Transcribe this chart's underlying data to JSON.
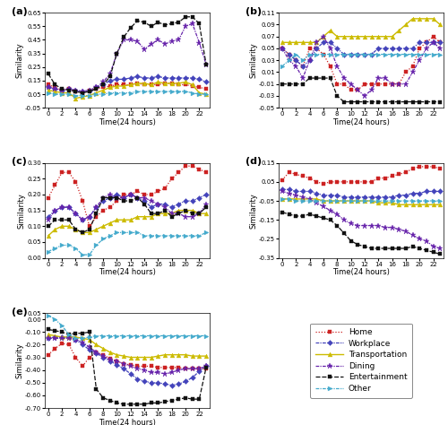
{
  "x": [
    0,
    1,
    2,
    3,
    4,
    5,
    6,
    7,
    8,
    9,
    10,
    11,
    12,
    13,
    14,
    15,
    16,
    17,
    18,
    19,
    20,
    21,
    22,
    23
  ],
  "subplot_titles": [
    "(a)",
    "(b)",
    "(c)",
    "(d)",
    "(e)"
  ],
  "xlabel": "Time(24 hours)",
  "ylabel": "Similarity",
  "legend_labels": [
    "Home",
    "Workplace",
    "Transportation",
    "Dining",
    "Entertainment",
    "Other"
  ],
  "colors": [
    "#cc2222",
    "#4444bb",
    "#ccbb00",
    "#6622aa",
    "#111111",
    "#44aacc"
  ],
  "markers": [
    "s",
    "D",
    "^",
    "*",
    "s",
    ">"
  ],
  "mksizes": [
    3,
    3,
    3.5,
    5,
    3,
    3.5
  ],
  "linewidths": [
    0.9,
    0.9,
    1.0,
    0.9,
    0.9,
    0.9
  ],
  "a_home": [
    0.12,
    0.1,
    0.08,
    0.09,
    0.07,
    0.06,
    0.08,
    0.09,
    0.1,
    0.11,
    0.12,
    0.12,
    0.12,
    0.13,
    0.12,
    0.12,
    0.12,
    0.13,
    0.13,
    0.12,
    0.12,
    0.11,
    0.1,
    0.09
  ],
  "a_workplace": [
    0.1,
    0.09,
    0.08,
    0.09,
    0.08,
    0.07,
    0.08,
    0.1,
    0.12,
    0.15,
    0.16,
    0.16,
    0.17,
    0.18,
    0.17,
    0.17,
    0.18,
    0.17,
    0.17,
    0.17,
    0.17,
    0.17,
    0.16,
    0.14
  ],
  "a_transport": [
    0.08,
    0.07,
    0.06,
    0.06,
    0.02,
    0.03,
    0.04,
    0.06,
    0.08,
    0.1,
    0.11,
    0.11,
    0.12,
    0.13,
    0.13,
    0.12,
    0.14,
    0.13,
    0.13,
    0.13,
    0.14,
    0.12,
    0.06,
    0.05
  ],
  "a_dining": [
    0.1,
    0.09,
    0.08,
    0.09,
    0.08,
    0.07,
    0.08,
    0.1,
    0.14,
    0.2,
    0.35,
    0.45,
    0.45,
    0.44,
    0.38,
    0.42,
    0.45,
    0.42,
    0.44,
    0.45,
    0.55,
    0.57,
    0.43,
    0.27
  ],
  "a_entertainment": [
    0.2,
    0.12,
    0.09,
    0.08,
    0.07,
    0.06,
    0.07,
    0.09,
    0.12,
    0.18,
    0.35,
    0.47,
    0.54,
    0.59,
    0.58,
    0.55,
    0.58,
    0.56,
    0.57,
    0.58,
    0.62,
    0.62,
    0.57,
    0.27
  ],
  "a_other": [
    0.06,
    0.05,
    0.05,
    0.05,
    0.04,
    0.04,
    0.04,
    0.05,
    0.05,
    0.06,
    0.06,
    0.06,
    0.06,
    0.07,
    0.07,
    0.07,
    0.07,
    0.07,
    0.07,
    0.07,
    0.07,
    0.06,
    0.05,
    0.05
  ],
  "b_home": [
    0.05,
    0.04,
    0.03,
    0.02,
    0.05,
    0.05,
    0.04,
    0.02,
    -0.01,
    -0.01,
    -0.02,
    -0.02,
    -0.01,
    -0.01,
    -0.01,
    -0.01,
    -0.01,
    -0.01,
    0.01,
    0.02,
    0.05,
    0.06,
    0.07,
    0.06
  ],
  "b_workplace": [
    0.05,
    0.04,
    0.03,
    0.02,
    0.03,
    0.05,
    0.06,
    0.06,
    0.05,
    0.04,
    0.04,
    0.04,
    0.04,
    0.04,
    0.05,
    0.05,
    0.05,
    0.05,
    0.05,
    0.05,
    0.06,
    0.06,
    0.06,
    0.06
  ],
  "b_transport": [
    0.06,
    0.06,
    0.06,
    0.06,
    0.06,
    0.06,
    0.07,
    0.08,
    0.07,
    0.07,
    0.07,
    0.07,
    0.07,
    0.07,
    0.07,
    0.07,
    0.07,
    0.08,
    0.09,
    0.1,
    0.1,
    0.1,
    0.1,
    0.09
  ],
  "b_dining": [
    0.05,
    0.03,
    0.02,
    0.0,
    0.03,
    0.06,
    0.07,
    0.05,
    0.02,
    0.0,
    -0.01,
    -0.02,
    -0.03,
    -0.02,
    0.0,
    0.0,
    -0.01,
    -0.01,
    -0.01,
    0.01,
    0.03,
    0.05,
    0.06,
    0.05
  ],
  "b_entertainment": [
    -0.01,
    -0.01,
    -0.01,
    -0.01,
    0.0,
    0.0,
    0.0,
    0.0,
    -0.03,
    -0.04,
    -0.04,
    -0.04,
    -0.04,
    -0.04,
    -0.04,
    -0.04,
    -0.04,
    -0.04,
    -0.04,
    -0.04,
    -0.04,
    -0.04,
    -0.04,
    -0.04
  ],
  "b_other": [
    0.02,
    0.03,
    0.04,
    0.03,
    0.04,
    0.04,
    0.04,
    0.04,
    0.04,
    0.04,
    0.04,
    0.04,
    0.04,
    0.04,
    0.04,
    0.04,
    0.04,
    0.04,
    0.04,
    0.04,
    0.04,
    0.04,
    0.04,
    0.04
  ],
  "c_home": [
    0.19,
    0.23,
    0.27,
    0.27,
    0.24,
    0.18,
    0.1,
    0.13,
    0.15,
    0.16,
    0.18,
    0.2,
    0.2,
    0.21,
    0.2,
    0.2,
    0.21,
    0.22,
    0.25,
    0.27,
    0.29,
    0.29,
    0.28,
    0.27
  ],
  "c_workplace": [
    0.13,
    0.15,
    0.16,
    0.16,
    0.14,
    0.12,
    0.13,
    0.16,
    0.18,
    0.19,
    0.2,
    0.19,
    0.2,
    0.19,
    0.18,
    0.16,
    0.17,
    0.17,
    0.16,
    0.17,
    0.18,
    0.18,
    0.19,
    0.2
  ],
  "c_transport": [
    0.07,
    0.09,
    0.1,
    0.1,
    0.09,
    0.08,
    0.08,
    0.09,
    0.1,
    0.11,
    0.12,
    0.12,
    0.12,
    0.13,
    0.13,
    0.13,
    0.14,
    0.14,
    0.14,
    0.15,
    0.15,
    0.15,
    0.14,
    0.14
  ],
  "c_dining": [
    0.12,
    0.15,
    0.16,
    0.16,
    0.14,
    0.12,
    0.13,
    0.16,
    0.19,
    0.2,
    0.19,
    0.19,
    0.2,
    0.19,
    0.19,
    0.18,
    0.17,
    0.16,
    0.14,
    0.14,
    0.13,
    0.13,
    0.14,
    0.17
  ],
  "c_entertainment": [
    0.1,
    0.12,
    0.12,
    0.12,
    0.09,
    0.08,
    0.09,
    0.14,
    0.19,
    0.19,
    0.19,
    0.18,
    0.18,
    0.19,
    0.17,
    0.14,
    0.14,
    0.15,
    0.13,
    0.14,
    0.15,
    0.14,
    0.14,
    0.16
  ],
  "c_other": [
    0.02,
    0.03,
    0.04,
    0.04,
    0.03,
    0.01,
    0.01,
    0.04,
    0.06,
    0.07,
    0.08,
    0.08,
    0.08,
    0.08,
    0.07,
    0.07,
    0.07,
    0.07,
    0.07,
    0.07,
    0.07,
    0.07,
    0.07,
    0.08
  ],
  "d_home": [
    0.06,
    0.1,
    0.09,
    0.08,
    0.07,
    0.05,
    0.04,
    0.05,
    0.05,
    0.05,
    0.05,
    0.05,
    0.05,
    0.05,
    0.07,
    0.07,
    0.08,
    0.09,
    0.1,
    0.12,
    0.13,
    0.13,
    0.13,
    0.12
  ],
  "d_workplace": [
    0.01,
    0.01,
    0.0,
    0.0,
    0.0,
    -0.01,
    -0.02,
    -0.02,
    -0.02,
    -0.03,
    -0.03,
    -0.03,
    -0.03,
    -0.03,
    -0.03,
    -0.03,
    -0.03,
    -0.02,
    -0.02,
    -0.01,
    -0.01,
    0.0,
    0.0,
    0.0
  ],
  "d_transport": [
    -0.04,
    -0.04,
    -0.04,
    -0.04,
    -0.04,
    -0.04,
    -0.05,
    -0.05,
    -0.05,
    -0.05,
    -0.05,
    -0.05,
    -0.05,
    -0.05,
    -0.06,
    -0.06,
    -0.06,
    -0.07,
    -0.07,
    -0.07,
    -0.07,
    -0.07,
    -0.07,
    -0.07
  ],
  "d_dining": [
    0.0,
    -0.01,
    -0.02,
    -0.03,
    -0.04,
    -0.06,
    -0.08,
    -0.1,
    -0.12,
    -0.15,
    -0.17,
    -0.18,
    -0.18,
    -0.18,
    -0.18,
    -0.19,
    -0.19,
    -0.2,
    -0.21,
    -0.23,
    -0.25,
    -0.26,
    -0.29,
    -0.3
  ],
  "d_entertainment": [
    -0.11,
    -0.12,
    -0.13,
    -0.13,
    -0.12,
    -0.13,
    -0.14,
    -0.15,
    -0.18,
    -0.22,
    -0.26,
    -0.28,
    -0.29,
    -0.3,
    -0.3,
    -0.3,
    -0.3,
    -0.3,
    -0.3,
    -0.29,
    -0.3,
    -0.31,
    -0.32,
    -0.33
  ],
  "d_other": [
    -0.04,
    -0.04,
    -0.05,
    -0.05,
    -0.05,
    -0.05,
    -0.05,
    -0.05,
    -0.05,
    -0.05,
    -0.05,
    -0.05,
    -0.05,
    -0.05,
    -0.05,
    -0.05,
    -0.05,
    -0.05,
    -0.05,
    -0.05,
    -0.05,
    -0.05,
    -0.05,
    -0.05
  ],
  "e_home": [
    -0.28,
    -0.23,
    -0.19,
    -0.2,
    -0.3,
    -0.37,
    -0.3,
    -0.26,
    -0.28,
    -0.31,
    -0.33,
    -0.35,
    -0.36,
    -0.37,
    -0.37,
    -0.37,
    -0.38,
    -0.38,
    -0.38,
    -0.38,
    -0.39,
    -0.39,
    -0.39,
    -0.39
  ],
  "e_workplace": [
    -0.15,
    -0.14,
    -0.14,
    -0.14,
    -0.16,
    -0.2,
    -0.24,
    -0.27,
    -0.3,
    -0.33,
    -0.36,
    -0.39,
    -0.43,
    -0.47,
    -0.49,
    -0.5,
    -0.5,
    -0.51,
    -0.52,
    -0.51,
    -0.49,
    -0.46,
    -0.41,
    -0.37
  ],
  "e_transport": [
    -0.12,
    -0.13,
    -0.14,
    -0.14,
    -0.14,
    -0.15,
    -0.16,
    -0.2,
    -0.23,
    -0.26,
    -0.28,
    -0.29,
    -0.3,
    -0.3,
    -0.3,
    -0.3,
    -0.29,
    -0.28,
    -0.28,
    -0.28,
    -0.28,
    -0.29,
    -0.29,
    -0.29
  ],
  "e_dining": [
    -0.15,
    -0.15,
    -0.15,
    -0.15,
    -0.16,
    -0.18,
    -0.22,
    -0.26,
    -0.29,
    -0.32,
    -0.33,
    -0.35,
    -0.37,
    -0.39,
    -0.4,
    -0.42,
    -0.42,
    -0.43,
    -0.42,
    -0.4,
    -0.39,
    -0.39,
    -0.39,
    -0.37
  ],
  "e_entertainment": [
    -0.08,
    -0.09,
    -0.1,
    -0.12,
    -0.11,
    -0.11,
    -0.1,
    -0.55,
    -0.62,
    -0.64,
    -0.66,
    -0.67,
    -0.67,
    -0.67,
    -0.67,
    -0.66,
    -0.66,
    -0.65,
    -0.64,
    -0.63,
    -0.62,
    -0.63,
    -0.63,
    -0.38
  ],
  "e_other": [
    0.03,
    0.0,
    -0.05,
    -0.12,
    -0.15,
    -0.15,
    -0.14,
    -0.13,
    -0.13,
    -0.13,
    -0.13,
    -0.13,
    -0.13,
    -0.13,
    -0.13,
    -0.13,
    -0.13,
    -0.13,
    -0.13,
    -0.13,
    -0.13,
    -0.13,
    -0.13,
    -0.13
  ],
  "a_ylim": [
    -0.05,
    0.65
  ],
  "b_ylim": [
    -0.05,
    0.11
  ],
  "c_ylim": [
    0.0,
    0.3
  ],
  "d_ylim": [
    -0.35,
    0.15
  ],
  "e_ylim": [
    -0.7,
    0.05
  ],
  "a_yticks": [
    -0.05,
    0.05,
    0.15,
    0.25,
    0.35,
    0.45,
    0.55,
    0.65
  ],
  "b_yticks": [
    -0.05,
    -0.03,
    -0.01,
    0.01,
    0.03,
    0.05,
    0.07,
    0.09,
    0.11
  ],
  "c_yticks": [
    0.0,
    0.05,
    0.1,
    0.15,
    0.2,
    0.25,
    0.3
  ],
  "d_yticks": [
    -0.35,
    -0.25,
    -0.15,
    -0.05,
    0.05,
    0.15
  ],
  "e_yticks": [
    -0.7,
    -0.6,
    -0.5,
    -0.4,
    -0.3,
    -0.2,
    -0.1,
    0.0,
    0.05
  ],
  "xticks": [
    0,
    2,
    4,
    6,
    8,
    10,
    12,
    14,
    16,
    18,
    20,
    22
  ]
}
